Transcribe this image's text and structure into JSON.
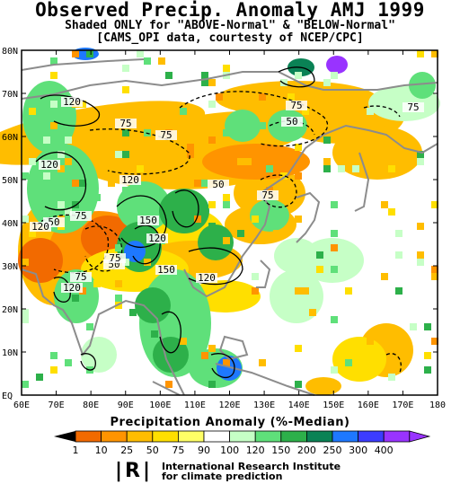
{
  "title": "Observed Precip. Anomaly AMJ 1999",
  "subtitle1": "Shaded ONLY for \"ABOVE-Normal\" & \"BELOW-Normal\"",
  "subtitle2": "[CAMS_OPI data, courtesty of NCEP/CPC]",
  "lat_labels": [
    "EQ",
    "10N",
    "20N",
    "30N",
    "40N",
    "50N",
    "60N",
    "70N",
    "80N"
  ],
  "lon_labels": [
    "60E",
    "70E",
    "80E",
    "90E",
    "100E",
    "110E",
    "120E",
    "130E",
    "140E",
    "150E",
    "160E",
    "170E",
    "180"
  ],
  "contour_labels": [
    "120",
    "75",
    "75",
    "120",
    "50",
    "120",
    "75",
    "150",
    "120",
    "50",
    "75",
    "120",
    "50",
    "150",
    "120",
    "75",
    "75",
    "50",
    "75",
    "75",
    "120"
  ],
  "scale_title": "Precipitation Anomaly (%-Median)",
  "scale_labels": [
    "1",
    "10",
    "25",
    "50",
    "75",
    "90",
    "100",
    "120",
    "150",
    "200",
    "250",
    "300",
    "400"
  ],
  "scale_colors": [
    "#f26a00",
    "#ff9400",
    "#ffbd00",
    "#ffdf00",
    "#ffff66",
    "#ffffff",
    "#c6ffc6",
    "#5fe07a",
    "#2db04a",
    "#0a8255",
    "#1e78ff",
    "#3c3cff",
    "#9933ff"
  ],
  "colors": {
    "land_outline": "#8c8c8c",
    "below_dark": "#f26a00",
    "below_mid": "#ff9400",
    "below_light": "#ffbd00",
    "below_pale": "#ffdf00",
    "above_pale": "#c6ffc6",
    "above_mid": "#5fe07a",
    "above_dark": "#2db04a",
    "above_deep": "#0a8255",
    "above_blue": "#1e78ff",
    "above_violet": "#9933ff"
  },
  "institute": {
    "logo": "|R|",
    "line1": "International Research Institute",
    "line2": "for climate prediction"
  }
}
